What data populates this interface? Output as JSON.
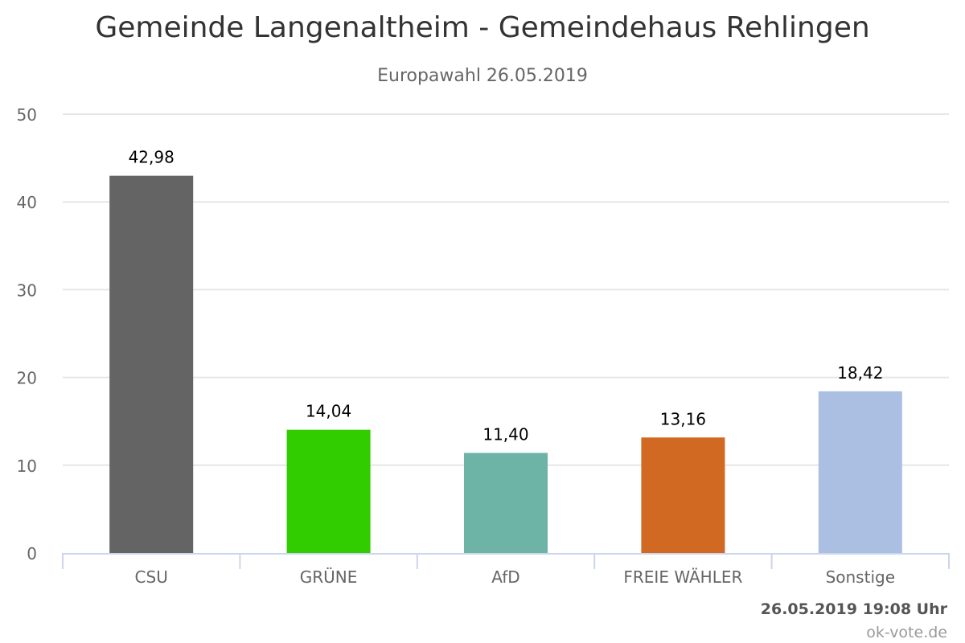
{
  "chart_data": {
    "type": "bar",
    "title": "Gemeinde Langenaltheim - Gemeindehaus Rehlingen",
    "subtitle": "Europawahl 26.05.2019",
    "categories": [
      "CSU",
      "GRÜNE",
      "AfD",
      "FREIE WÄHLER",
      "Sonstige"
    ],
    "values": [
      42.98,
      14.04,
      11.4,
      13.16,
      18.42
    ],
    "value_labels": [
      "42,98",
      "14,04",
      "11,40",
      "13,16",
      "18,42"
    ],
    "colors": [
      "#646464",
      "#32cd00",
      "#6db3a6",
      "#d26922",
      "#abbfe3"
    ],
    "xlabel": "",
    "ylabel": "",
    "ylim": [
      0,
      50
    ],
    "yticks": [
      0,
      10,
      20,
      30,
      40,
      50
    ],
    "ytick_labels": [
      "0",
      "10",
      "20",
      "30",
      "40",
      "50"
    ],
    "grid": true,
    "legend": "none"
  },
  "credits": {
    "timestamp": "26.05.2019 19:08 Uhr",
    "site": "ok-vote.de"
  }
}
